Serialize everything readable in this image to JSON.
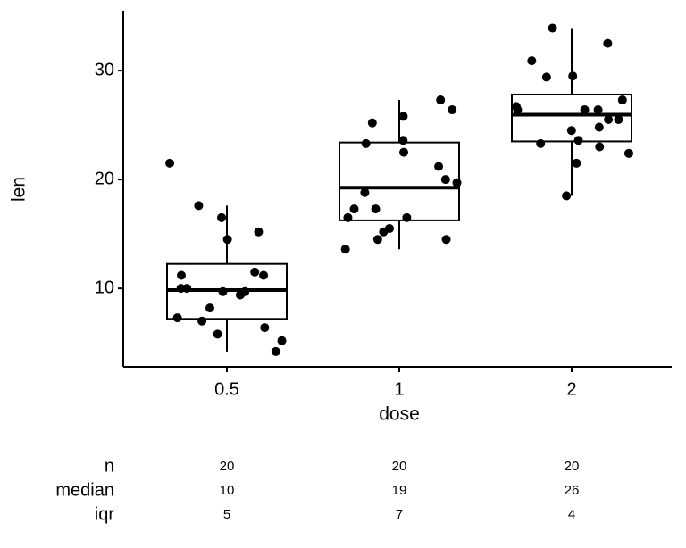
{
  "chart_data": {
    "type": "box",
    "x_label": "dose",
    "y_label": "len",
    "categories": [
      "0.5",
      "1",
      "2"
    ],
    "ylim": [
      2.8,
      35.5
    ],
    "yticks": [
      10,
      20,
      30
    ],
    "color": "#000000",
    "boxes": [
      {
        "low": 4.2,
        "q1": 7.2,
        "median": 9.85,
        "q3": 12.25,
        "high": 17.6
      },
      {
        "low": 13.6,
        "q1": 16.25,
        "median": 19.25,
        "q3": 23.4,
        "high": 27.3
      },
      {
        "low": 18.5,
        "q1": 23.5,
        "median": 25.95,
        "q3": 27.8,
        "high": 33.9
      }
    ],
    "points": [
      [
        4.2,
        11.5,
        7.3,
        5.8,
        6.4,
        10,
        11.2,
        11.2,
        5.2,
        7,
        15.2,
        21.5,
        17.6,
        9.7,
        14.5,
        10,
        8.2,
        9.4,
        16.5,
        9.7
      ],
      [
        16.5,
        16.5,
        15.2,
        17.3,
        22.5,
        17.3,
        13.6,
        14.5,
        18.8,
        15.5,
        19.7,
        23.3,
        23.6,
        26.4,
        20,
        25.2,
        25.8,
        21.2,
        14.5,
        27.3
      ],
      [
        23.6,
        18.5,
        33.9,
        25.5,
        26.4,
        32.5,
        26.7,
        21.5,
        23.3,
        29.5,
        25.5,
        26.4,
        22.4,
        24.5,
        24.8,
        30.9,
        26.4,
        27.3,
        29.4,
        23
      ]
    ],
    "table": {
      "row_labels": [
        "n",
        "median",
        "iqr"
      ],
      "rows": [
        [
          20,
          20,
          20
        ],
        [
          10,
          19,
          26
        ],
        [
          5,
          7,
          4
        ]
      ]
    }
  }
}
